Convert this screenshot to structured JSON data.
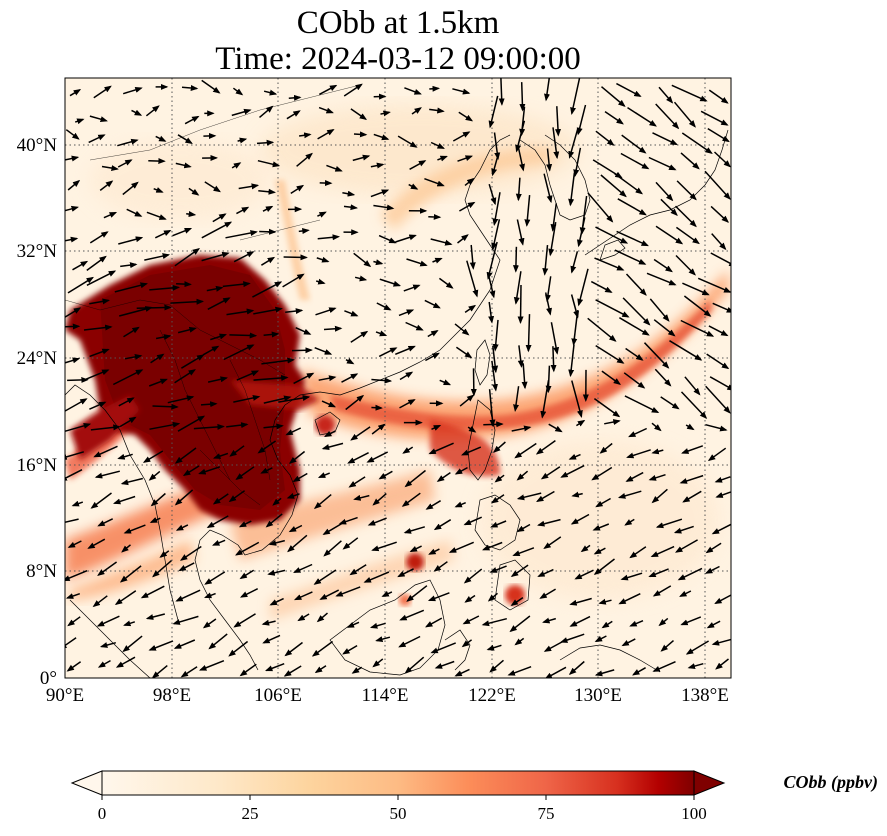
{
  "title": {
    "line1": "CObb at 1.5km",
    "line2": "Time: 2024-03-12 09:00:00"
  },
  "map": {
    "type": "filled contour map with wind vectors",
    "lon_range": [
      90,
      140
    ],
    "lat_range": [
      0,
      45
    ],
    "lon_ticks": [
      {
        "value": 90,
        "label": "90°E"
      },
      {
        "value": 98,
        "label": "98°E"
      },
      {
        "value": 106,
        "label": "106°E"
      },
      {
        "value": 114,
        "label": "114°E"
      },
      {
        "value": 122,
        "label": "122°E"
      },
      {
        "value": 130,
        "label": "130°E"
      },
      {
        "value": 138,
        "label": "138°E"
      }
    ],
    "lat_ticks": [
      {
        "value": 0,
        "label": "0°"
      },
      {
        "value": 8,
        "label": "8°N"
      },
      {
        "value": 16,
        "label": "16°N"
      },
      {
        "value": 24,
        "label": "24°N"
      },
      {
        "value": 32,
        "label": "32°N"
      },
      {
        "value": 40,
        "label": "40°N"
      }
    ],
    "gridlines": "dotted",
    "colormap": "OrRd",
    "colormap_stops": [
      "#fff7ec",
      "#fdd49e",
      "#fc8d59",
      "#d7301f",
      "#7f0000"
    ]
  },
  "colorbar": {
    "title": "CObb (ppbv)",
    "ticks": [
      "0",
      "25",
      "50",
      "75",
      "100"
    ],
    "range": [
      0,
      100
    ],
    "extend": "both"
  }
}
